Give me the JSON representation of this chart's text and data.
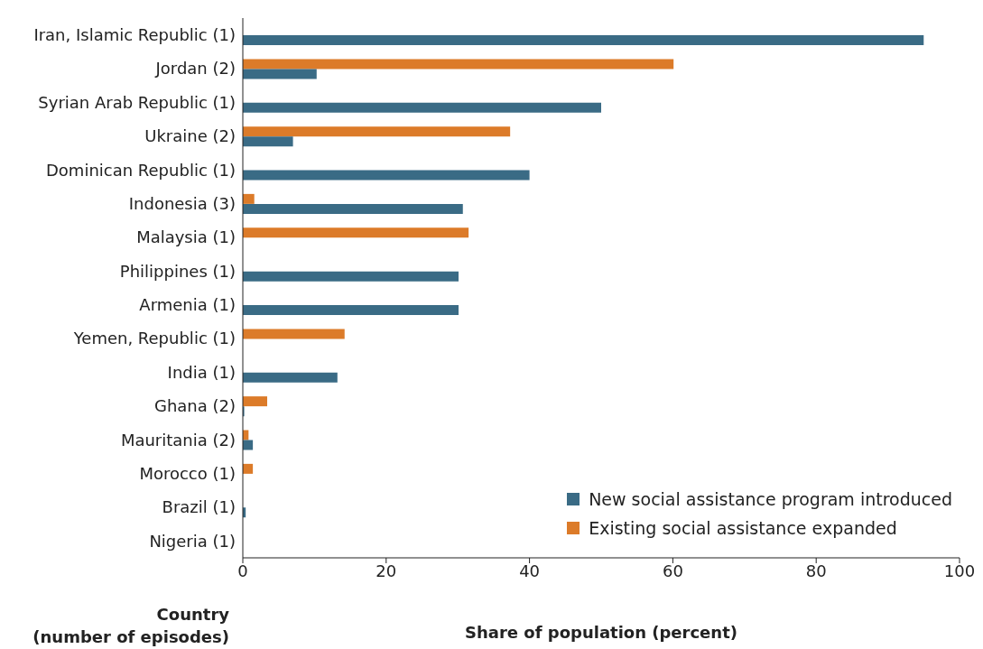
{
  "chart_data": {
    "type": "bar",
    "orientation": "horizontal",
    "xlabel": "Share of population (percent)",
    "ylabel": "Country\n(number of episodes)",
    "categories": [
      "Iran, Islamic Republic (1)",
      "Jordan (2)",
      "Syrian Arab Republic (1)",
      "Ukraine (2)",
      "Dominican Republic (1)",
      "Indonesia (3)",
      "Malaysia (1)",
      "Philippines (1)",
      "Armenia (1)",
      "Yemen, Republic (1)",
      "India (1)",
      "Ghana (2)",
      "Mauritania (2)",
      "Morocco (1)",
      "Brazil (1)",
      "Nigeria (1)"
    ],
    "series": [
      {
        "name": "New social assistance program introduced",
        "color": "#3a6b85",
        "values": [
          95,
          10.3,
          50,
          7,
          40,
          30.7,
          null,
          30.1,
          30.1,
          null,
          13.2,
          0.2,
          1.4,
          null,
          0.4,
          null
        ]
      },
      {
        "name": "Existing social assistance expanded",
        "color": "#dc7b29",
        "values": [
          null,
          60.1,
          null,
          37.3,
          null,
          1.6,
          31.5,
          null,
          null,
          14.2,
          null,
          3.4,
          0.8,
          1.4,
          null,
          null
        ]
      }
    ],
    "xlim": [
      0,
      100
    ],
    "xticks": [
      0,
      20,
      40,
      60,
      80,
      100
    ],
    "grid": false,
    "legend": "bottom right"
  }
}
